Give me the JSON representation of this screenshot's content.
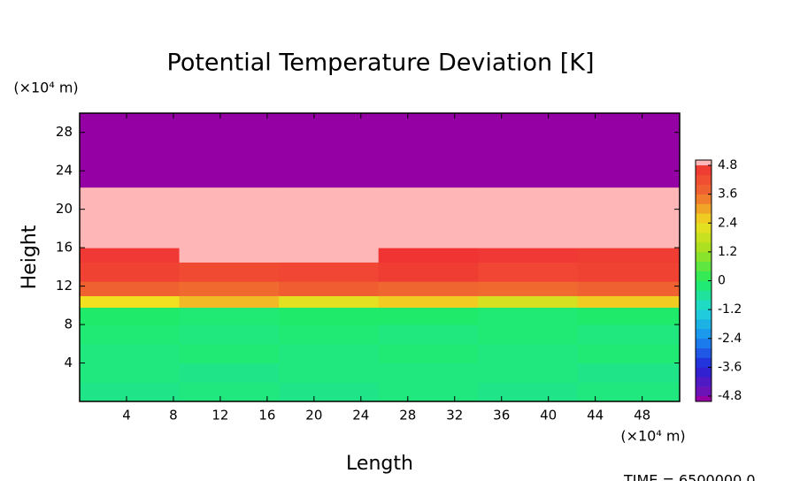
{
  "chart_data": {
    "type": "contour",
    "title": "Potential Temperature Deviation [K]",
    "x_label": "Length",
    "y_label": "Height",
    "x_unit": "(×10⁴ m)",
    "y_unit": "(×10⁴ m)",
    "footer": "TIME = 6500000.0",
    "xlim": [
      0,
      51.2
    ],
    "ylim": [
      0,
      30
    ],
    "xticks": [
      4,
      8,
      12,
      16,
      20,
      24,
      28,
      32,
      36,
      40,
      44,
      48
    ],
    "yticks": [
      4,
      8,
      12,
      16,
      20,
      24,
      28
    ],
    "x": [
      0,
      8.5,
      17,
      25.5,
      34,
      42.5,
      51.2
    ],
    "y": [
      0,
      2,
      4,
      6,
      8,
      9.8,
      11,
      12.5,
      14.5,
      16,
      18,
      20,
      22.3,
      24,
      27,
      30
    ],
    "z": [
      [
        -0.4,
        -0.3,
        -0.4,
        -0.3,
        -0.4,
        -0.3
      ],
      [
        -0.3,
        -0.4,
        -0.3,
        -0.3,
        -0.3,
        -0.4
      ],
      [
        -0.3,
        -0.2,
        -0.3,
        -0.2,
        -0.3,
        -0.2
      ],
      [
        -0.2,
        -0.3,
        -0.2,
        -0.3,
        -0.2,
        -0.3
      ],
      [
        -0.1,
        -0.2,
        -0.1,
        -0.1,
        -0.2,
        -0.1
      ],
      [
        2.4,
        2.8,
        2.2,
        2.6,
        2.0,
        2.6
      ],
      [
        3.8,
        3.6,
        3.9,
        3.7,
        3.6,
        3.8
      ],
      [
        4.5,
        4.3,
        4.4,
        4.6,
        4.4,
        4.5
      ],
      [
        4.7,
        5.0,
        4.9,
        4.8,
        4.7,
        4.6
      ],
      [
        5.0,
        5.0,
        5.0,
        5.0,
        5.0,
        5.0
      ],
      [
        5.0,
        5.0,
        5.0,
        5.0,
        5.0,
        5.0
      ],
      [
        5.0,
        5.0,
        5.0,
        5.0,
        5.0,
        5.0
      ],
      [
        -5.0,
        -5.0,
        -5.0,
        -5.0,
        -5.0,
        -5.0
      ],
      [
        -5.0,
        -5.0,
        -5.0,
        -5.0,
        -5.0,
        -5.0
      ],
      [
        -5.0,
        -5.0,
        -5.0,
        -5.0,
        -5.0,
        -5.0
      ]
    ],
    "colorbar": {
      "ticks": [
        -4.8,
        -3.6,
        -2.4,
        -1.2,
        0,
        1.2,
        2.4,
        3.6,
        4.8
      ],
      "colors": [
        "#7a10b0",
        "#2424d8",
        "#1a8cf0",
        "#20d8d8",
        "#20ec60",
        "#9ee020",
        "#f0e020",
        "#f06a30",
        "#f03434"
      ],
      "under": "#9400a3",
      "over": "#ffb6b6"
    }
  }
}
